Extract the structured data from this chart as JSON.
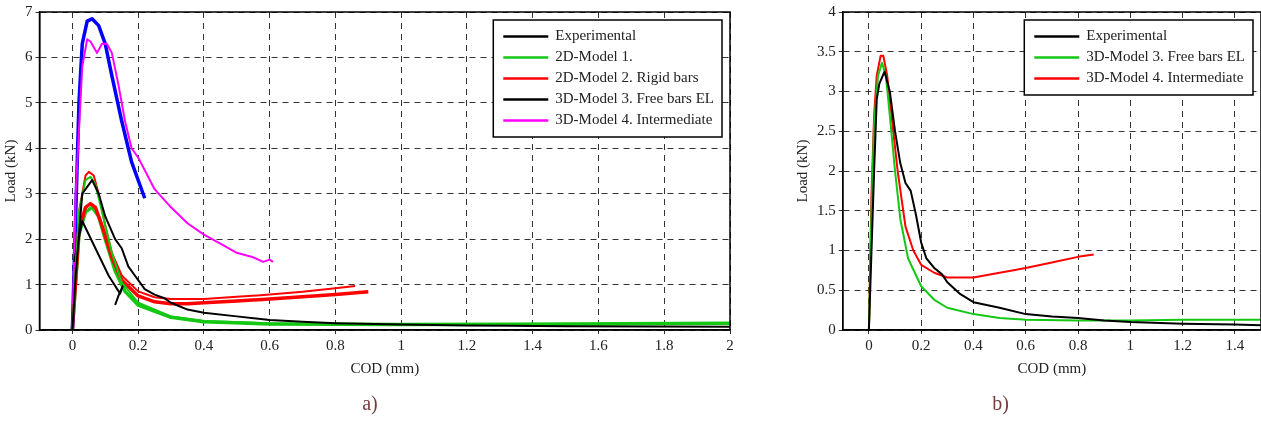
{
  "chart_data": [
    {
      "type": "line",
      "xlabel": "COD (mm)",
      "ylabel": "Load (kN)",
      "xlim": [
        -0.1,
        2
      ],
      "xticks": [
        0,
        0.2,
        0.4,
        0.6,
        0.8,
        1,
        1.2,
        1.4,
        1.6,
        1.8,
        2
      ],
      "ylim": [
        0,
        7
      ],
      "yticks": [
        0,
        1,
        2,
        3,
        4,
        5,
        6,
        7
      ],
      "grid": true,
      "line_style": "solid",
      "legend": "top right",
      "annotations": [
        "a)"
      ],
      "series": [
        {
          "name": "Experimental",
          "color": "#000000",
          "x": [
            0,
            0.01,
            0.03,
            0.05,
            0.06,
            0.08,
            0.1,
            0.13,
            0.15,
            0.17,
            0.19,
            0.22,
            0.25,
            0.28,
            0.3,
            0.35,
            0.4,
            0.5,
            0.6,
            0.7,
            0.8,
            1,
            1.2,
            1.5,
            2
          ],
          "values": [
            0,
            1.2,
            3.0,
            3.2,
            3.3,
            3.0,
            2.5,
            2.0,
            1.8,
            1.4,
            1.2,
            0.9,
            0.78,
            0.7,
            0.6,
            0.45,
            0.38,
            0.3,
            0.22,
            0.18,
            0.15,
            0.12,
            0.1,
            0.08,
            0.07
          ]
        },
        {
          "name": "2D-Model 1.",
          "color": "#14c814",
          "x": [
            0,
            0.02,
            0.04,
            0.055,
            0.07,
            0.09,
            0.12,
            0.15,
            0.2,
            0.3,
            0.4,
            0.6,
            0.8,
            1,
            1.5,
            2
          ],
          "values": [
            0,
            2.6,
            3.3,
            3.37,
            3.2,
            2.6,
            1.7,
            1.05,
            0.6,
            0.3,
            0.2,
            0.15,
            0.13,
            0.12,
            0.12,
            0.15
          ]
        },
        {
          "name": "2D-Model 2. Rigid bars",
          "color": "#ff0000",
          "x": [
            0,
            0.02,
            0.04,
            0.05,
            0.065,
            0.08,
            0.1,
            0.12,
            0.15,
            0.2,
            0.25,
            0.3,
            0.4,
            0.5,
            0.6,
            0.7,
            0.8,
            0.86
          ],
          "values": [
            0,
            2.6,
            3.4,
            3.48,
            3.4,
            3.0,
            2.3,
            1.7,
            1.2,
            0.85,
            0.72,
            0.68,
            0.68,
            0.73,
            0.78,
            0.84,
            0.92,
            0.97
          ]
        },
        {
          "name": "3D-Model 3. Free bars EL",
          "color": "#000000",
          "x": [
            0.005,
            0.03,
            0.07,
            0.11,
            0.145,
            0.155,
            0.14,
            0.13
          ],
          "values": [
            1.5,
            2.4,
            1.8,
            1.2,
            0.8,
            1.0,
            0.75,
            0.55
          ]
        },
        {
          "name": "3D-Model 4. Intermediate",
          "color": "#ff00ff",
          "x": [
            0,
            0.01,
            0.03,
            0.045,
            0.055,
            0.075,
            0.09,
            0.105,
            0.12,
            0.14,
            0.16,
            0.18,
            0.2,
            0.25,
            0.3,
            0.35,
            0.4,
            0.45,
            0.5,
            0.55,
            0.58,
            0.6,
            0.61
          ],
          "values": [
            0,
            3,
            5.8,
            6.4,
            6.35,
            6.1,
            6.3,
            6.3,
            6.1,
            5.4,
            4.6,
            4.0,
            3.8,
            3.1,
            2.7,
            2.35,
            2.1,
            1.9,
            1.7,
            1.6,
            1.5,
            1.55,
            1.5
          ]
        },
        {
          "color": "#0000ff",
          "x": [
            0,
            0.01,
            0.02,
            0.03,
            0.045,
            0.06,
            0.08,
            0.1,
            0.12,
            0.15,
            0.18,
            0.22
          ],
          "values": [
            0,
            2.5,
            5,
            6.3,
            6.8,
            6.85,
            6.7,
            6.3,
            5.6,
            4.6,
            3.7,
            2.9
          ]
        },
        {
          "color": "#ff0000",
          "x": [
            0,
            0.02,
            0.04,
            0.055,
            0.07,
            0.09,
            0.12,
            0.15,
            0.2,
            0.25,
            0.3,
            0.35,
            0.4,
            0.5,
            0.6,
            0.7,
            0.8,
            0.9
          ],
          "values": [
            0,
            2.2,
            2.7,
            2.78,
            2.7,
            2.3,
            1.6,
            1.1,
            0.75,
            0.62,
            0.58,
            0.58,
            0.6,
            0.64,
            0.68,
            0.73,
            0.78,
            0.84
          ]
        },
        {
          "color": "#14c814",
          "x": [
            0,
            0.02,
            0.04,
            0.06,
            0.08,
            0.1,
            0.13,
            0.16,
            0.2,
            0.3,
            0.4,
            0.6,
            1,
            1.5,
            2
          ],
          "values": [
            0,
            2.1,
            2.6,
            2.7,
            2.5,
            2.0,
            1.3,
            0.85,
            0.55,
            0.28,
            0.18,
            0.13,
            0.12,
            0.13,
            0.15
          ]
        }
      ]
    },
    {
      "type": "line",
      "xlabel": "COD (mm)",
      "ylabel": "Load (kN)",
      "xlim": [
        -0.1,
        1.5
      ],
      "xticks": [
        0,
        0.2,
        0.4,
        0.6,
        0.8,
        1,
        1.2,
        1.4
      ],
      "ylim": [
        0,
        4
      ],
      "yticks": [
        0,
        0.5,
        1,
        1.5,
        2,
        2.5,
        3,
        3.5,
        4
      ],
      "grid": true,
      "line_style": "solid",
      "legend": "top right",
      "annotations": [
        "b)"
      ],
      "series": [
        {
          "name": "Experimental",
          "color": "#000000",
          "x": [
            0,
            0.01,
            0.02,
            0.03,
            0.04,
            0.06,
            0.08,
            0.1,
            0.12,
            0.14,
            0.16,
            0.18,
            0.2,
            0.22,
            0.25,
            0.28,
            0.3,
            0.35,
            0.4,
            0.5,
            0.6,
            0.7,
            0.8,
            0.9,
            1,
            1.2,
            1.4,
            1.5
          ],
          "values": [
            0,
            1.0,
            2.0,
            2.9,
            3.1,
            3.25,
            3.0,
            2.5,
            2.1,
            1.85,
            1.75,
            1.45,
            1.1,
            0.9,
            0.78,
            0.7,
            0.6,
            0.45,
            0.35,
            0.28,
            0.2,
            0.17,
            0.15,
            0.12,
            0.1,
            0.08,
            0.07,
            0.06
          ]
        },
        {
          "name": "3D-Model 3. Free bars EL",
          "color": "#14c814",
          "x": [
            0,
            0.01,
            0.02,
            0.035,
            0.05,
            0.065,
            0.08,
            0.1,
            0.12,
            0.15,
            0.2,
            0.25,
            0.3,
            0.4,
            0.5,
            0.6,
            0.8,
            1,
            1.2,
            1.5
          ],
          "values": [
            0,
            1.5,
            2.6,
            3.2,
            3.36,
            3.2,
            2.7,
            2.0,
            1.4,
            0.9,
            0.55,
            0.38,
            0.28,
            0.2,
            0.15,
            0.13,
            0.12,
            0.12,
            0.13,
            0.13
          ]
        },
        {
          "name": "3D-Model 4. Intermediate",
          "color": "#ff0000",
          "x": [
            0,
            0.01,
            0.02,
            0.03,
            0.045,
            0.055,
            0.07,
            0.09,
            0.11,
            0.14,
            0.17,
            0.2,
            0.25,
            0.3,
            0.4,
            0.5,
            0.6,
            0.7,
            0.8,
            0.86
          ],
          "values": [
            0,
            1.7,
            2.7,
            3.2,
            3.45,
            3.45,
            3.2,
            2.6,
            2.0,
            1.3,
            1.0,
            0.82,
            0.72,
            0.66,
            0.66,
            0.72,
            0.78,
            0.85,
            0.92,
            0.95
          ]
        }
      ]
    }
  ]
}
